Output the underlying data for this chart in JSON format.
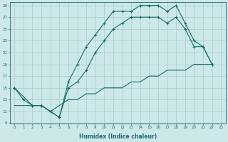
{
  "xlabel": "Humidex (Indice chaleur)",
  "bg_color": "#cce8e8",
  "grid_color": "#aacccc",
  "line_color": "#1a6b6b",
  "xlim": [
    -0.5,
    23.5
  ],
  "ylim": [
    9,
    29.5
  ],
  "xticks": [
    0,
    1,
    2,
    3,
    4,
    5,
    6,
    7,
    8,
    9,
    10,
    11,
    12,
    13,
    14,
    15,
    16,
    17,
    18,
    19,
    20,
    21,
    22,
    23
  ],
  "yticks": [
    9,
    11,
    13,
    15,
    17,
    19,
    21,
    23,
    25,
    27,
    29
  ],
  "series": [
    {
      "x": [
        0,
        1,
        2,
        3,
        4,
        5,
        6,
        7,
        8,
        9,
        10,
        11,
        12,
        13,
        14,
        15,
        16,
        17,
        18,
        19,
        20,
        21,
        22
      ],
      "y": [
        15,
        13,
        12,
        12,
        11,
        10,
        16,
        19,
        22,
        24,
        26,
        28,
        28,
        28,
        29,
        29,
        29,
        28,
        29,
        26,
        23,
        22,
        19
      ],
      "marker": "+"
    },
    {
      "x": [
        0,
        2,
        3,
        4,
        5,
        6,
        7,
        8,
        9,
        10,
        11,
        12,
        13,
        14,
        15,
        16,
        17,
        18,
        19,
        20,
        21,
        22
      ],
      "y": [
        15,
        12,
        12,
        11,
        10,
        15,
        16,
        18,
        21,
        23,
        25,
        26,
        27,
        27,
        27,
        27,
        26,
        27,
        25,
        22,
        22,
        19
      ],
      "marker": "+"
    },
    {
      "x": [
        0,
        1,
        2,
        3,
        4,
        5,
        6,
        7,
        8,
        9,
        10,
        11,
        12,
        13,
        14,
        15,
        16,
        17,
        18,
        19,
        20,
        21,
        22
      ],
      "y": [
        12,
        12,
        12,
        12,
        11,
        12,
        13,
        13,
        14,
        14,
        15,
        15,
        15,
        16,
        16,
        17,
        17,
        18,
        18,
        18,
        19,
        19,
        19
      ],
      "marker": null
    }
  ]
}
